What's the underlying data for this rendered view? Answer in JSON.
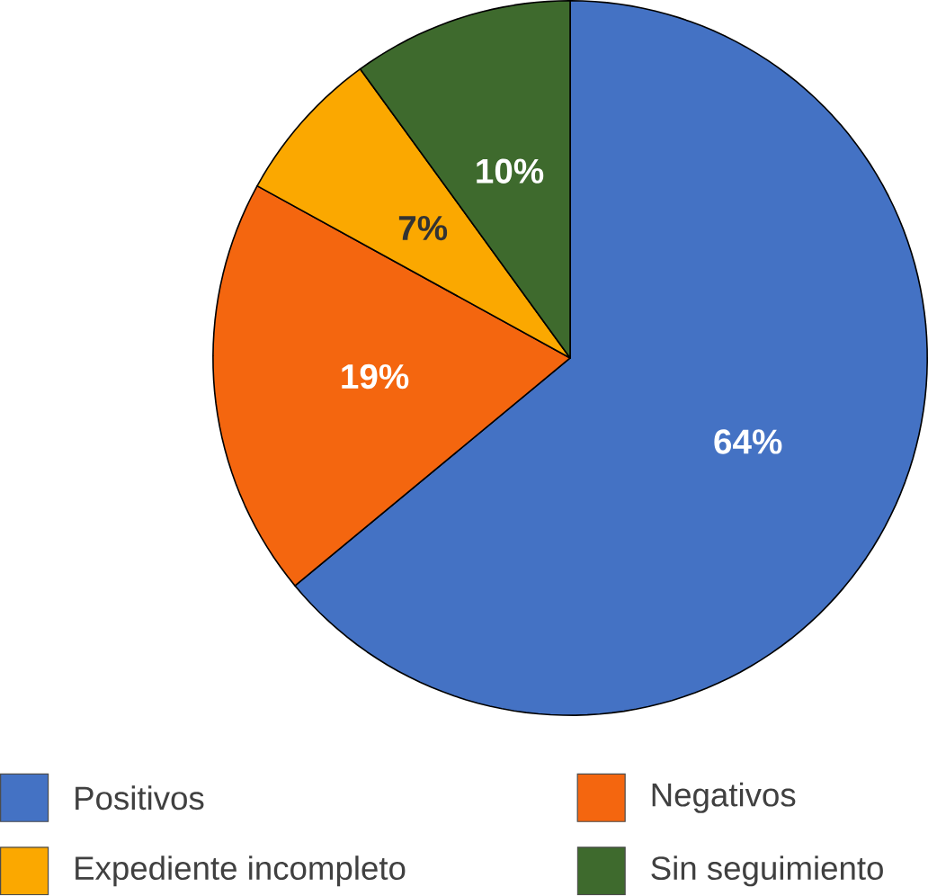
{
  "chart_data": {
    "type": "pie",
    "categories": [
      "Positivos",
      "Negativos",
      "Expediente incompleto",
      "Sin seguimiento"
    ],
    "values": [
      64,
      19,
      7,
      10
    ],
    "colors": [
      "#4472c4",
      "#f4660f",
      "#fba800",
      "#3e6a2d"
    ],
    "value_labels": [
      "64%",
      "19%",
      "7%",
      "10%"
    ],
    "legend": "bottom"
  }
}
